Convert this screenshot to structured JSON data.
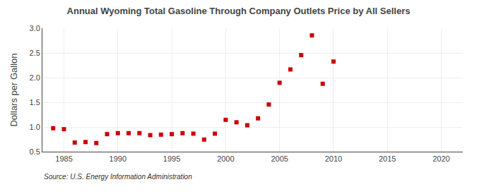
{
  "chart_data": {
    "type": "scatter",
    "title": "Annual Wyoming Total Gasoline Through Company Outlets Price by All Sellers",
    "ylabel": "Dollars per Gallon",
    "annotations": [
      "Source: U.S. Energy Information Administration"
    ],
    "x": [
      1984,
      1985,
      1986,
      1987,
      1988,
      1989,
      1990,
      1991,
      1992,
      1993,
      1994,
      1995,
      1996,
      1997,
      1998,
      1999,
      2000,
      2001,
      2002,
      2003,
      2004,
      2005,
      2006,
      2007,
      2008,
      2009,
      2010
    ],
    "values": [
      0.975,
      0.955,
      0.685,
      0.695,
      0.675,
      0.855,
      0.875,
      0.875,
      0.875,
      0.835,
      0.845,
      0.855,
      0.875,
      0.865,
      0.745,
      0.865,
      1.145,
      1.095,
      1.035,
      1.175,
      1.455,
      1.895,
      2.165,
      2.455,
      2.855,
      1.875,
      2.325
    ],
    "color": "#cc0000",
    "marker": "square",
    "xlim": [
      1983,
      2022
    ],
    "ylim": [
      0.5,
      3.0
    ],
    "xticks": [
      1985,
      1990,
      1995,
      2000,
      2005,
      2010,
      2015,
      2020
    ],
    "yticks": [
      0.5,
      {
        "value": 1.0,
        "label": "1.0"
      },
      1.5,
      {
        "value": 2.0,
        "label": "2.0"
      },
      2.5,
      {
        "value": 3.0,
        "label": "3.0"
      }
    ],
    "grid": true
  }
}
